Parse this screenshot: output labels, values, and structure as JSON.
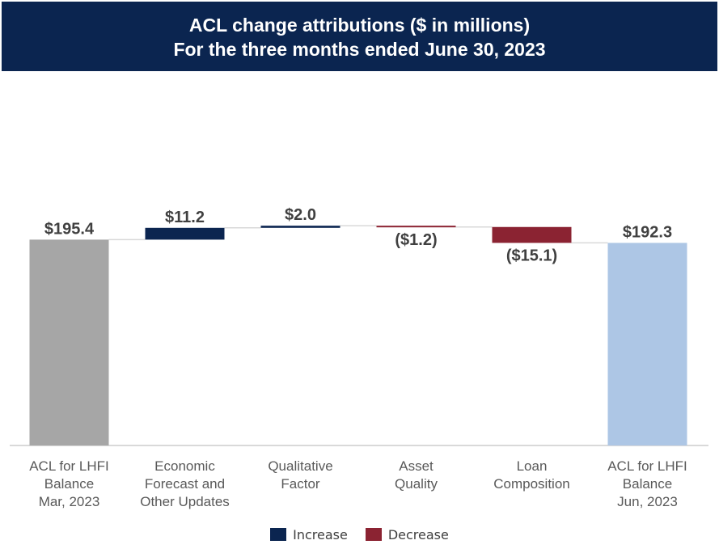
{
  "header": {
    "title_line1": "ACL change attributions ($ in millions)",
    "title_line2": "For the three months ended June 30, 2023"
  },
  "chart_data": {
    "type": "waterfall",
    "title": "ACL change attributions ($ in millions)",
    "subtitle": "For the three months ended June 30, 2023",
    "steps": [
      {
        "category": [
          "ACL for LHFI",
          "Balance",
          "Mar, 2023"
        ],
        "value": 195.4,
        "kind": "total",
        "label": "$195.4",
        "color": "#a6a6a6"
      },
      {
        "category": [
          "Economic",
          "Forecast and",
          "Other Updates"
        ],
        "value": 11.2,
        "kind": "increase",
        "label": "$11.2",
        "color": "#0b2550"
      },
      {
        "category": [
          "Qualitative",
          "Factor"
        ],
        "value": 2.0,
        "kind": "increase",
        "label": "$2.0",
        "color": "#0b2550"
      },
      {
        "category": [
          "Asset",
          "Quality"
        ],
        "value": -1.2,
        "kind": "decrease",
        "label": "($1.2)",
        "color": "#8b2332"
      },
      {
        "category": [
          "Loan",
          "Composition"
        ],
        "value": -15.1,
        "kind": "decrease",
        "label": "($15.1)",
        "color": "#8b2332"
      },
      {
        "category": [
          "ACL for LHFI",
          "Balance",
          "Jun, 2023"
        ],
        "value": 192.3,
        "kind": "total",
        "label": "$192.3",
        "color": "#adc6e5"
      }
    ],
    "legend": [
      {
        "name": "Increase",
        "color": "#0b2550"
      },
      {
        "name": "Decrease",
        "color": "#8b2332"
      }
    ],
    "legend_position": "bottom",
    "grid": false
  }
}
